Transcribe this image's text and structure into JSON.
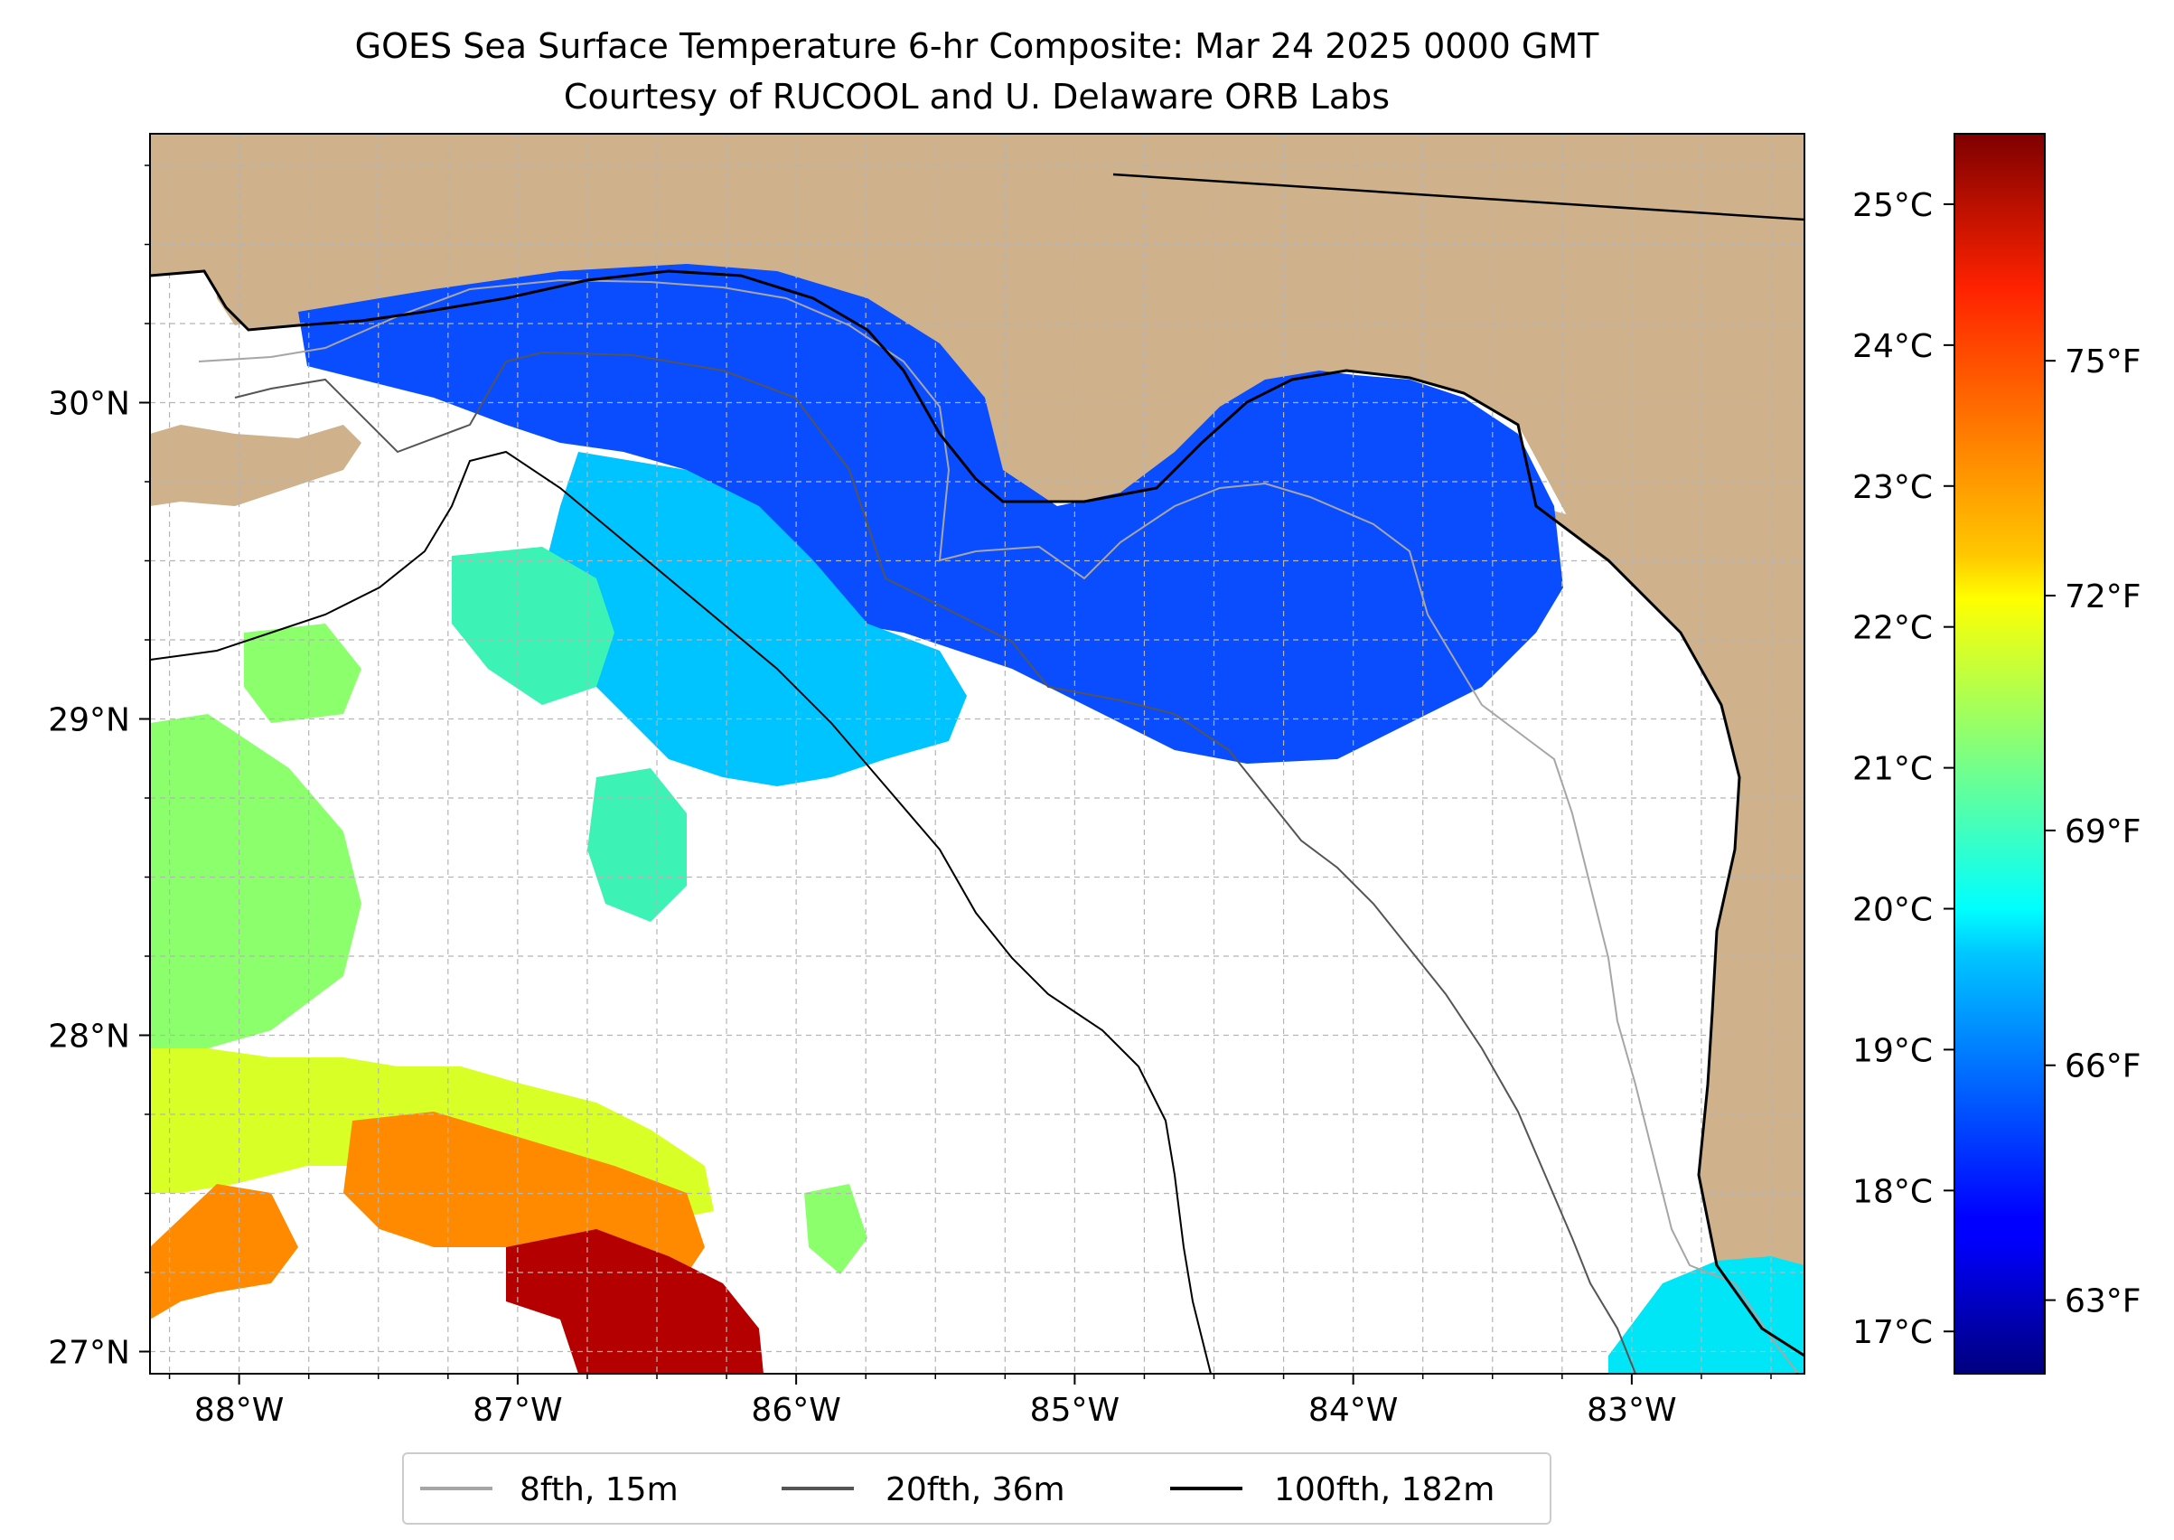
{
  "title": {
    "line1": "GOES Sea Surface Temperature 6-hr Composite: Mar 24 2025 0000 GMT",
    "line2": "Courtesy of RUCOOL and U. Delaware ORB Labs"
  },
  "map": {
    "extent": {
      "lon_min": -88.32,
      "lon_max": -82.38,
      "lat_min": 26.93,
      "lat_max": 30.85
    },
    "lon_ticks": [
      {
        "value": -88,
        "label": "88°W"
      },
      {
        "value": -87,
        "label": "87°W"
      },
      {
        "value": -86,
        "label": "86°W"
      },
      {
        "value": -85,
        "label": "85°W"
      },
      {
        "value": -84,
        "label": "84°W"
      },
      {
        "value": -83,
        "label": "83°W"
      }
    ],
    "lat_ticks": [
      {
        "value": 30,
        "label": "30°N"
      },
      {
        "value": 29,
        "label": "29°N"
      },
      {
        "value": 28,
        "label": "28°N"
      },
      {
        "value": 27,
        "label": "27°N"
      }
    ],
    "grid_step_deg": 0.25,
    "land_color": "#cfb28b",
    "no_data_color": "#ffffff"
  },
  "isobaths": [
    {
      "label": "8fth, 15m",
      "color": "#a6a6a6"
    },
    {
      "label": "20fth, 36m",
      "color": "#555555"
    },
    {
      "label": "100fth, 182m",
      "color": "#000000"
    }
  ],
  "colorbar": {
    "min_c": 16.7,
    "max_c": 25.5,
    "celsius_ticks": [
      {
        "value": 25,
        "label": "25°C"
      },
      {
        "value": 24,
        "label": "24°C"
      },
      {
        "value": 23,
        "label": "23°C"
      },
      {
        "value": 22,
        "label": "22°C"
      },
      {
        "value": 21,
        "label": "21°C"
      },
      {
        "value": 20,
        "label": "20°C"
      },
      {
        "value": 19,
        "label": "19°C"
      },
      {
        "value": 18,
        "label": "18°C"
      },
      {
        "value": 17,
        "label": "17°C"
      }
    ],
    "fahrenheit_ticks": [
      {
        "value": 75,
        "label": "75°F"
      },
      {
        "value": 72,
        "label": "72°F"
      },
      {
        "value": 69,
        "label": "69°F"
      },
      {
        "value": 66,
        "label": "66°F"
      },
      {
        "value": 63,
        "label": "63°F"
      }
    ],
    "colormap": "jet"
  }
}
